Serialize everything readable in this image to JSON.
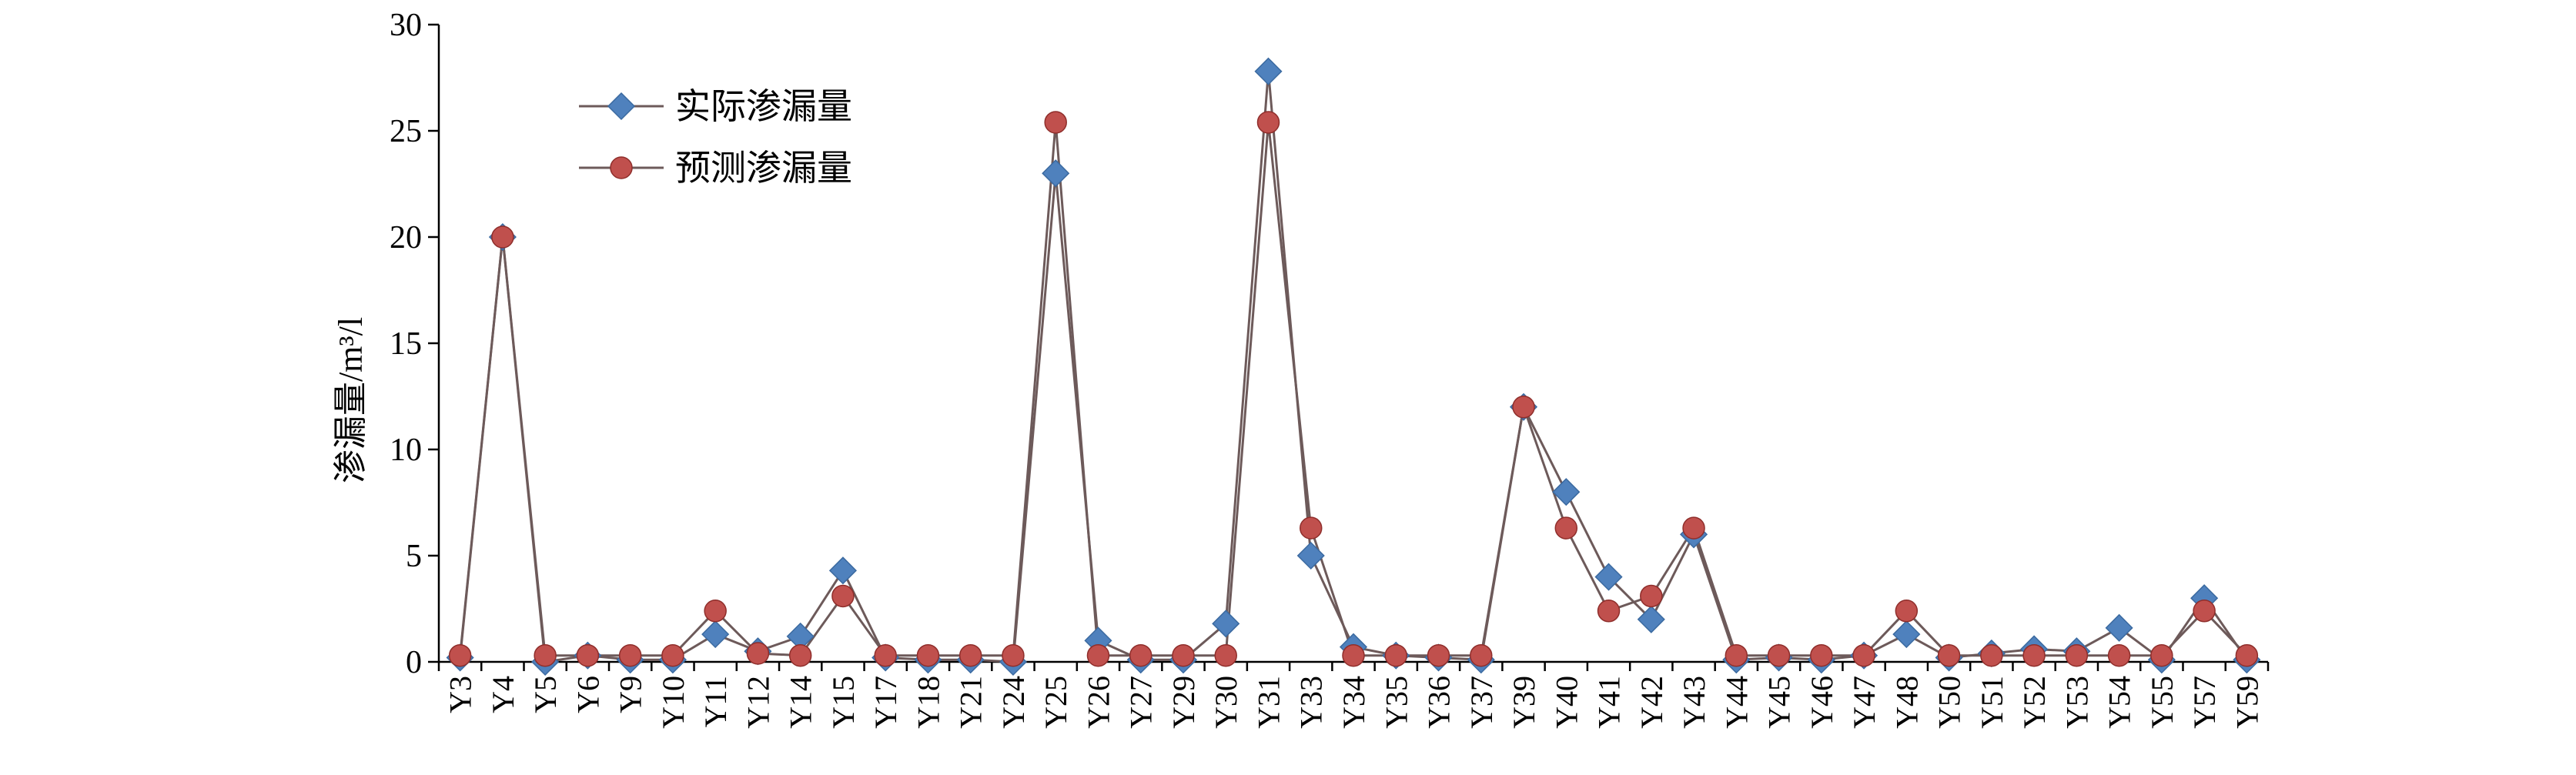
{
  "chart_data": {
    "type": "line",
    "title": "",
    "xlabel": "",
    "ylabel": "渗漏量/m³/l",
    "ylim": [
      0,
      30
    ],
    "yticks": [
      0,
      5,
      10,
      15,
      20,
      25,
      30
    ],
    "grid": false,
    "legend_position": "top-left",
    "categories": [
      "Y3",
      "Y4",
      "Y5",
      "Y6",
      "Y9",
      "Y10",
      "Y11",
      "Y12",
      "Y14",
      "Y15",
      "Y17",
      "Y18",
      "Y21",
      "Y24",
      "Y25",
      "Y26",
      "Y27",
      "Y29",
      "Y30",
      "Y31",
      "Y33",
      "Y34",
      "Y35",
      "Y36",
      "Y37",
      "Y39",
      "Y40",
      "Y41",
      "Y42",
      "Y43",
      "Y44",
      "Y45",
      "Y46",
      "Y47",
      "Y48",
      "Y50",
      "Y51",
      "Y52",
      "Y53",
      "Y54",
      "Y55",
      "Y57",
      "Y59"
    ],
    "series": [
      {
        "name": "实际渗漏量",
        "marker": "diamond",
        "color": "#4f81bd",
        "values": [
          0.2,
          20.0,
          0.0,
          0.3,
          0.1,
          0.1,
          1.3,
          0.5,
          1.2,
          4.3,
          0.2,
          0.1,
          0.1,
          0.0,
          23.0,
          1.0,
          0.1,
          0.1,
          1.8,
          27.8,
          5.0,
          0.7,
          0.3,
          0.2,
          0.1,
          12.0,
          8.0,
          4.0,
          2.0,
          6.0,
          0.1,
          0.2,
          0.1,
          0.3,
          1.3,
          0.2,
          0.4,
          0.6,
          0.5,
          1.6,
          0.1,
          3.0,
          0.1
        ]
      },
      {
        "name": "预测渗漏量",
        "marker": "circle",
        "color": "#c0504d",
        "values": [
          0.3,
          20.0,
          0.3,
          0.3,
          0.3,
          0.3,
          2.4,
          0.4,
          0.3,
          3.1,
          0.3,
          0.3,
          0.3,
          0.3,
          25.4,
          0.3,
          0.3,
          0.3,
          0.3,
          25.4,
          6.3,
          0.3,
          0.3,
          0.3,
          0.3,
          12.0,
          6.3,
          2.4,
          3.1,
          6.3,
          0.3,
          0.3,
          0.3,
          0.3,
          2.4,
          0.3,
          0.3,
          0.3,
          0.3,
          0.3,
          0.3,
          2.4,
          0.3
        ]
      }
    ],
    "line_color": "#6d5a5a"
  }
}
